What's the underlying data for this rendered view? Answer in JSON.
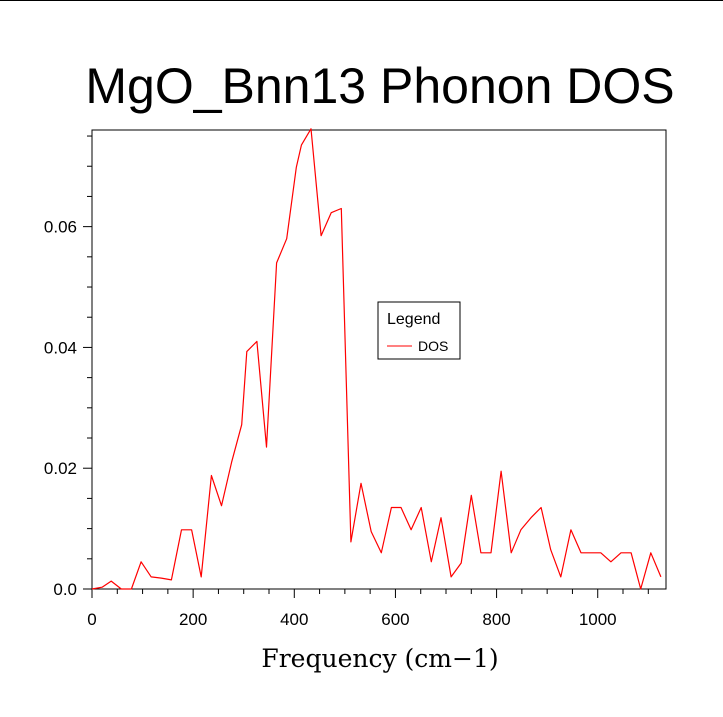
{
  "chart_data": {
    "type": "line",
    "title": "MgO_Bnn13 Phonon DOS",
    "xlabel": "Frequency (cm−1)",
    "ylabel": "",
    "xlim": [
      0,
      1135
    ],
    "ylim": [
      0,
      0.076
    ],
    "xticks": [
      0,
      200,
      400,
      600,
      800,
      1000
    ],
    "xtick_labels": [
      "0",
      "200",
      "400",
      "600",
      "800",
      "1000"
    ],
    "yticks": [
      0,
      0.02,
      0.04,
      0.06
    ],
    "ytick_labels": [
      "0.0",
      "0.02",
      "0.04",
      "0.06"
    ],
    "grid": false,
    "legend": {
      "title": "Legend",
      "placement": "center-right"
    },
    "series": [
      {
        "name": "DOS",
        "color": "#ff0000",
        "x": [
          0,
          20,
          38,
          58,
          78,
          97,
          117,
          137,
          157,
          177,
          197,
          216,
          236,
          256,
          276,
          296,
          306,
          326,
          345,
          365,
          385,
          404,
          414,
          433,
          453,
          473,
          493,
          512,
          532,
          552,
          572,
          592,
          611,
          631,
          651,
          671,
          690,
          710,
          730,
          750,
          769,
          789,
          809,
          829,
          848,
          868,
          888,
          907,
          927,
          947,
          967,
          986,
          1006,
          1026,
          1046,
          1066,
          1085,
          1105,
          1125
        ],
        "y": [
          0,
          0.0003,
          0.0013,
          0,
          0,
          0.0045,
          0.002,
          0.0018,
          0.0015,
          0.0098,
          0.0098,
          0.002,
          0.0188,
          0.0138,
          0.021,
          0.0272,
          0.0393,
          0.041,
          0.0235,
          0.054,
          0.058,
          0.0698,
          0.0735,
          0.0762,
          0.0585,
          0.0623,
          0.063,
          0.0078,
          0.0175,
          0.0095,
          0.006,
          0.0135,
          0.0135,
          0.0098,
          0.0135,
          0.0045,
          0.0118,
          0.002,
          0.0043,
          0.0155,
          0.006,
          0.006,
          0.0195,
          0.006,
          0.0098,
          0.0118,
          0.0135,
          0.0065,
          0.002,
          0.0098,
          0.006,
          0.006,
          0.006,
          0.0045,
          0.006,
          0.006,
          0,
          0.006,
          0.002
        ]
      }
    ]
  }
}
